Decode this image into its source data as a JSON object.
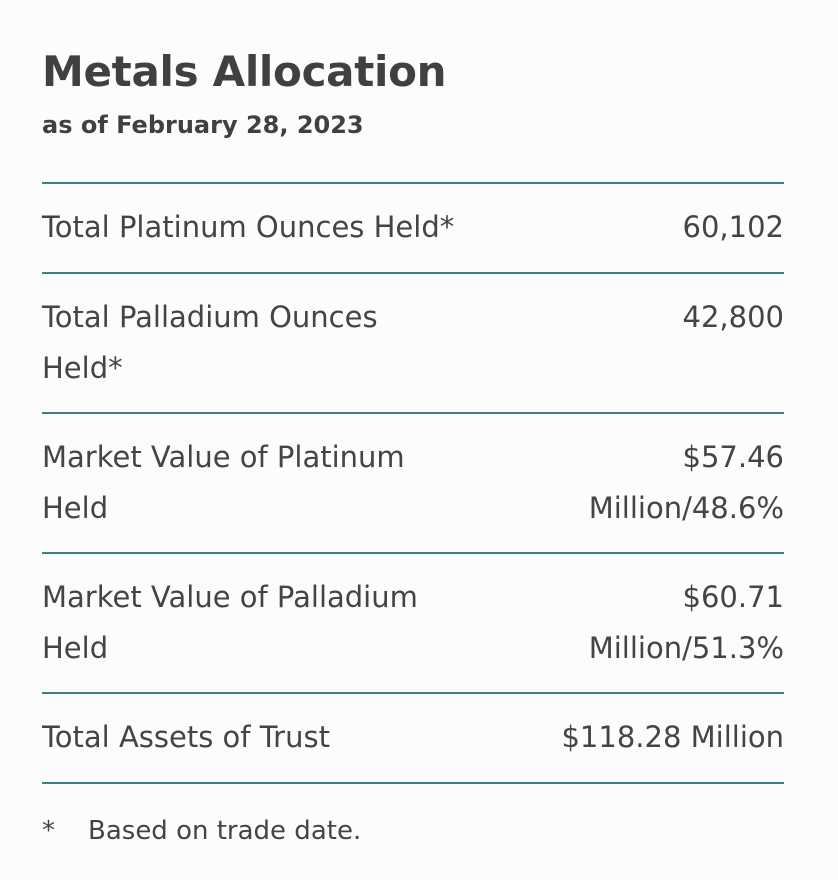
{
  "header": {
    "title": "Metals Allocation",
    "subtitle": "as of February 28, 2023"
  },
  "rows": [
    {
      "label": "Total Platinum Ounces Held*",
      "value": "60,102"
    },
    {
      "label": "Total Palladium Ounces Held*",
      "value": "42,800"
    },
    {
      "label": "Market Value of Platinum Held",
      "value": "$57.46 Million/48.6%"
    },
    {
      "label": "Market Value of Palladium Held",
      "value": "$60.71 Million/51.3%"
    },
    {
      "label": "Total Assets of Trust",
      "value": "$118.28 Million"
    }
  ],
  "footnote": {
    "mark": "*",
    "text": "Based on trade date."
  },
  "colors": {
    "divider": "#3f7f8a",
    "text": "#404040",
    "background": "#fcfcfc"
  }
}
